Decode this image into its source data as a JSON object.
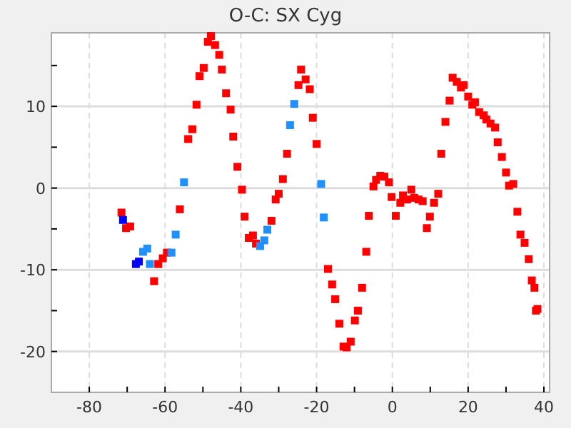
{
  "chart_data": {
    "type": "scatter",
    "title": "O-C: SX Cyg",
    "marker": "square",
    "grid": true,
    "xlim": [
      -90,
      41.5
    ],
    "ylim": [
      -25,
      19
    ],
    "xticks": [
      -80,
      {
        "value": -70,
        "label": null
      },
      -60,
      {
        "value": -50,
        "label": null
      },
      -40,
      {
        "value": -30,
        "label": null
      },
      -20,
      {
        "value": -10,
        "label": null
      },
      0,
      {
        "value": 10,
        "label": null
      },
      20,
      {
        "value": 30,
        "label": null
      },
      40
    ],
    "yticks": [
      -20,
      {
        "value": -15,
        "label": null
      },
      -10,
      {
        "value": -5,
        "label": null
      },
      0,
      {
        "value": 5,
        "label": null
      },
      10,
      {
        "value": 15,
        "label": null
      }
    ],
    "series": [
      {
        "color": "#ff0000",
        "x": [
          -71.5,
          -70.3,
          -69.2,
          -62.9,
          -61.8,
          -59.5,
          -60.6,
          -56.1,
          -53.9,
          -52.8,
          -51.7,
          -50.9,
          -49.8,
          -48.7,
          -47.9,
          -46.8,
          -45.7,
          -45.0,
          -43.9,
          -42.7,
          -42.0,
          -40.9,
          -39.7,
          -39.0,
          -37.9,
          -36.8,
          -36.0,
          -31.9,
          -30.8,
          -30.0,
          -28.9,
          -27.8,
          -24.8,
          -24.1,
          -22.9,
          -21.8,
          -21.0,
          -20.0,
          -17.0,
          -15.9,
          -15.1,
          -14.0,
          -12.9,
          -12.1,
          -11.0,
          -9.9,
          -9.1,
          -8.0,
          -6.9,
          -6.2,
          -5.0,
          -4.3,
          -3.2,
          -2.1,
          -0.9,
          -0.2,
          0.9,
          2.1,
          2.8,
          3.9,
          5.0,
          5.8,
          6.9,
          8.0,
          9.1,
          9.9,
          11.0,
          12.1,
          12.9,
          14.0,
          15.1,
          15.9,
          17.0,
          18.1,
          18.8,
          20.0,
          21.1,
          21.8,
          22.9,
          24.1,
          24.8,
          25.9,
          27.1,
          27.8,
          28.9,
          30.0,
          30.8,
          31.9,
          33.0,
          33.8,
          34.9,
          36.0,
          36.8,
          37.5,
          37.9,
          38.3
        ],
        "values": [
          -3.0,
          -4.9,
          -4.7,
          -11.4,
          -9.3,
          -7.9,
          -8.6,
          -2.6,
          6.0,
          7.2,
          10.2,
          13.7,
          14.7,
          17.9,
          18.6,
          17.5,
          16.3,
          14.5,
          11.6,
          9.6,
          6.3,
          2.6,
          -0.2,
          -3.5,
          -6.1,
          -5.8,
          -6.8,
          -4.0,
          -1.4,
          -0.7,
          1.1,
          4.2,
          12.6,
          14.5,
          13.3,
          12.1,
          8.6,
          5.4,
          -9.9,
          -11.8,
          -13.6,
          -16.6,
          -19.4,
          -19.5,
          -18.8,
          -16.2,
          -15.0,
          -12.2,
          -7.8,
          -3.4,
          0.2,
          1.0,
          1.5,
          1.4,
          0.7,
          -1.1,
          -3.4,
          -1.8,
          -0.9,
          -1.4,
          -0.2,
          -1.2,
          -1.4,
          -1.6,
          -4.9,
          -3.5,
          -1.8,
          -0.7,
          4.2,
          8.1,
          10.7,
          13.5,
          13.0,
          12.3,
          12.6,
          11.2,
          10.2,
          10.5,
          9.3,
          8.9,
          8.4,
          7.9,
          7.4,
          5.6,
          3.8,
          1.9,
          0.3,
          0.5,
          -2.9,
          -5.7,
          -6.7,
          -8.7,
          -11.3,
          -12.2,
          -15.0,
          -14.8
        ]
      },
      {
        "color": "#1e90ff",
        "x": [
          -55.0,
          -57.2,
          -65.8,
          -64.7,
          -64.0,
          -58.3,
          -34.9,
          -33.8,
          -33.0,
          -25.9,
          -27.0,
          -18.8,
          -18.1
        ],
        "values": [
          0.7,
          -5.7,
          -7.8,
          -7.4,
          -9.3,
          -7.9,
          -7.1,
          -6.4,
          -5.1,
          10.3,
          7.7,
          0.5,
          -3.6
        ]
      },
      {
        "color": "#0000ff",
        "x": [
          -71.1,
          -67.7,
          -66.9
        ],
        "values": [
          -3.9,
          -9.3,
          -9.0
        ]
      }
    ]
  }
}
